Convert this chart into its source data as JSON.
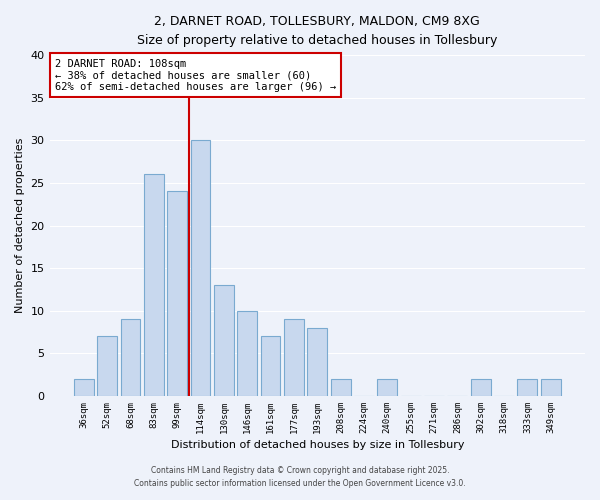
{
  "title1": "2, DARNET ROAD, TOLLESBURY, MALDON, CM9 8XG",
  "title2": "Size of property relative to detached houses in Tollesbury",
  "xlabel": "Distribution of detached houses by size in Tollesbury",
  "ylabel": "Number of detached properties",
  "bar_color": "#c8d8ee",
  "bar_edge_color": "#7aaad0",
  "background_color": "#eef2fa",
  "grid_color": "#ffffff",
  "categories": [
    "36sqm",
    "52sqm",
    "68sqm",
    "83sqm",
    "99sqm",
    "114sqm",
    "130sqm",
    "146sqm",
    "161sqm",
    "177sqm",
    "193sqm",
    "208sqm",
    "224sqm",
    "240sqm",
    "255sqm",
    "271sqm",
    "286sqm",
    "302sqm",
    "318sqm",
    "333sqm",
    "349sqm"
  ],
  "values": [
    2,
    7,
    9,
    26,
    24,
    30,
    13,
    10,
    7,
    9,
    8,
    2,
    0,
    2,
    0,
    0,
    0,
    2,
    0,
    2,
    2
  ],
  "ylim": [
    0,
    40
  ],
  "yticks": [
    0,
    5,
    10,
    15,
    20,
    25,
    30,
    35,
    40
  ],
  "vline_index": 4.5,
  "property_label": "2 DARNET ROAD: 108sqm",
  "annotation_line1": "← 38% of detached houses are smaller (60)",
  "annotation_line2": "62% of semi-detached houses are larger (96) →",
  "vline_color": "#cc0000",
  "footer1": "Contains HM Land Registry data © Crown copyright and database right 2025.",
  "footer2": "Contains public sector information licensed under the Open Government Licence v3.0."
}
